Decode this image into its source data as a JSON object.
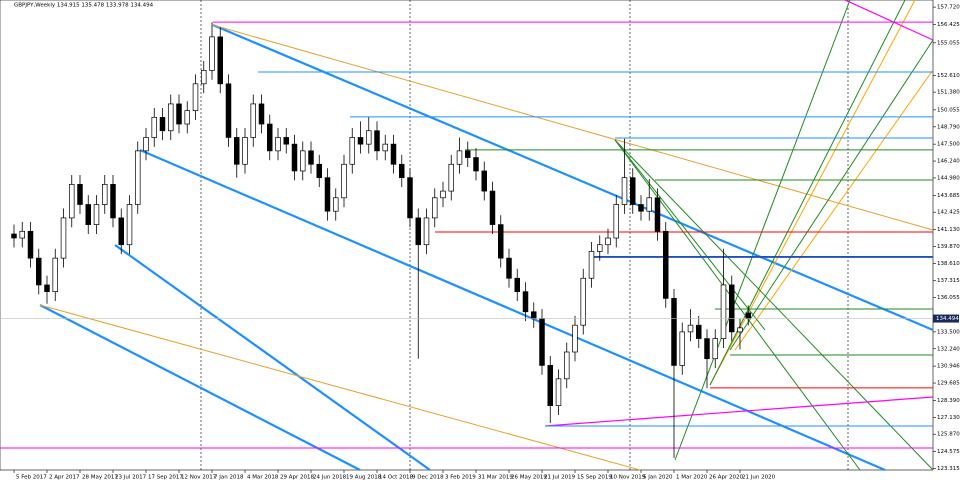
{
  "chart_data": {
    "type": "candlestick",
    "title": "GBPJPY,Weekly  134.915 135.478 133.978 134.494",
    "categories": [
      "5 Feb 2017",
      null,
      null,
      null,
      "2 Apr 2017",
      null,
      null,
      null,
      "28 May 2017",
      null,
      null,
      null,
      "23 Jul 2017",
      null,
      null,
      null,
      "17 Sep 2017",
      null,
      null,
      null,
      "12 Nov 2017",
      null,
      null,
      null,
      "7 Jan 2018",
      null,
      null,
      null,
      "4 Mar 2018",
      null,
      null,
      null,
      "29 Apr 2018",
      null,
      null,
      null,
      "24 Jun 2018",
      null,
      null,
      null,
      "19 Aug 2018",
      null,
      null,
      null,
      "14 Oct 2018",
      null,
      null,
      null,
      "9 Dec 2018",
      null,
      null,
      null,
      "3 Feb 2019",
      null,
      null,
      null,
      "31 Mar 2019",
      null,
      null,
      null,
      "26 May 2019",
      null,
      null,
      null,
      "21 Jul 2019",
      null,
      null,
      null,
      "15 Sep 2019",
      null,
      null,
      null,
      "10 Nov 2019",
      null,
      null,
      null,
      "5 Jan 2020",
      null,
      null,
      null,
      "1 Mar 2020",
      null,
      null,
      null,
      "26 Apr 2020",
      null,
      null,
      null,
      "21 Jun 2020",
      null
    ],
    "ohlc": [
      [
        140.8,
        141.5,
        139.8,
        140.5
      ],
      [
        140.5,
        141.7,
        139.8,
        141
      ],
      [
        141,
        141.7,
        138.3,
        139
      ],
      [
        139,
        139.7,
        136.3,
        137
      ],
      [
        137,
        137.7,
        135.6,
        136.5
      ],
      [
        136.5,
        139.7,
        135.8,
        139
      ],
      [
        139,
        142.7,
        138.3,
        142
      ],
      [
        142,
        145.2,
        141.3,
        144.5
      ],
      [
        144.5,
        145.2,
        142.3,
        143
      ],
      [
        143,
        143.7,
        140.8,
        141.5
      ],
      [
        141.5,
        143.7,
        140.8,
        143
      ],
      [
        143,
        145.2,
        142.3,
        144.5
      ],
      [
        144.5,
        145.2,
        141.3,
        142
      ],
      [
        142,
        142.7,
        139.3,
        140
      ],
      [
        140,
        143.7,
        139.3,
        143
      ],
      [
        143,
        147.7,
        142.3,
        147
      ],
      [
        147,
        148.7,
        146.3,
        148
      ],
      [
        148,
        150.2,
        147.3,
        149.5
      ],
      [
        149.5,
        150.2,
        147.8,
        148.5
      ],
      [
        148.5,
        151.2,
        147.8,
        150.5
      ],
      [
        150.5,
        151.2,
        148.3,
        149
      ],
      [
        149,
        150.7,
        148.3,
        150
      ],
      [
        150,
        152.7,
        149.3,
        152
      ],
      [
        152,
        153.7,
        151.3,
        153
      ],
      [
        153,
        156.6,
        152.3,
        155.5
      ],
      [
        155.5,
        156.2,
        151.3,
        152
      ],
      [
        152,
        152.7,
        147.3,
        148
      ],
      [
        148,
        148.7,
        145,
        146
      ],
      [
        146,
        148.7,
        145.3,
        148
      ],
      [
        148,
        151.2,
        147.3,
        150.5
      ],
      [
        150.5,
        151.2,
        148.3,
        149
      ],
      [
        149,
        149.7,
        146.3,
        147
      ],
      [
        147,
        148.7,
        146.3,
        148
      ],
      [
        148,
        148.7,
        146.8,
        147.5
      ],
      [
        147.5,
        148.2,
        144.8,
        145.5
      ],
      [
        145.5,
        147.7,
        144.8,
        147
      ],
      [
        147,
        147.7,
        145.3,
        146
      ],
      [
        146,
        146.7,
        144.3,
        145
      ],
      [
        145,
        145.7,
        141.8,
        142.5
      ],
      [
        142.5,
        144.2,
        141.8,
        143.5
      ],
      [
        143.5,
        146.7,
        142.8,
        146
      ],
      [
        146,
        148.7,
        145.3,
        148
      ],
      [
        148,
        149.2,
        146.8,
        147.5
      ],
      [
        147.5,
        149.5,
        146.8,
        148.5
      ],
      [
        148.5,
        149.2,
        146.3,
        147
      ],
      [
        147,
        148.2,
        146.3,
        147.5
      ],
      [
        147.5,
        148.2,
        145.3,
        146
      ],
      [
        146,
        146.7,
        144.3,
        145
      ],
      [
        145,
        145.7,
        141.3,
        142
      ],
      [
        142,
        142.7,
        131.5,
        140
      ],
      [
        140,
        142.7,
        139.3,
        142
      ],
      [
        142,
        144.2,
        141.3,
        143.5
      ],
      [
        143.5,
        144.7,
        142.8,
        144
      ],
      [
        144,
        146.7,
        143.3,
        146
      ],
      [
        146,
        148,
        145.3,
        147
      ],
      [
        147,
        147.7,
        145.8,
        146.5
      ],
      [
        146.5,
        147.2,
        144.8,
        145.5
      ],
      [
        145.5,
        146.2,
        143.3,
        144
      ],
      [
        144,
        144.7,
        140.8,
        141.5
      ],
      [
        141.5,
        142.2,
        138.3,
        139
      ],
      [
        139,
        139.7,
        136.8,
        137.5
      ],
      [
        137.5,
        138.2,
        135.8,
        136.5
      ],
      [
        136.5,
        137.2,
        134.3,
        135
      ],
      [
        135,
        135.7,
        133.8,
        134.5
      ],
      [
        134.5,
        135.2,
        130.3,
        131
      ],
      [
        131,
        131.7,
        126.7,
        128
      ],
      [
        128,
        130.7,
        127.3,
        130
      ],
      [
        130,
        132.7,
        129.3,
        132
      ],
      [
        132,
        134.7,
        131.3,
        134
      ],
      [
        134,
        138.2,
        133.3,
        137.5
      ],
      [
        137.5,
        140.2,
        136.8,
        139.5
      ],
      [
        139.5,
        140.7,
        138.8,
        140
      ],
      [
        140,
        141.2,
        139.3,
        140.5
      ],
      [
        140.5,
        143.7,
        139.8,
        143
      ],
      [
        143,
        147.9,
        142.3,
        145
      ],
      [
        145,
        145.7,
        142.3,
        143
      ],
      [
        143,
        143.7,
        141.8,
        142.5
      ],
      [
        142.5,
        144.9,
        141.8,
        143.5
      ],
      [
        143.5,
        144.2,
        140.3,
        141
      ],
      [
        141,
        141.7,
        135.3,
        136
      ],
      [
        136,
        136.7,
        124.1,
        131
      ],
      [
        131,
        134.2,
        130.3,
        133.5
      ],
      [
        133.5,
        135.2,
        132.8,
        134
      ],
      [
        134,
        134.7,
        132.3,
        133
      ],
      [
        133,
        133.7,
        129.3,
        131.5
      ],
      [
        131.5,
        133.7,
        130.8,
        133
      ],
      [
        133,
        139.7,
        132.3,
        137
      ],
      [
        137,
        137.7,
        132.8,
        133.5
      ],
      [
        133.5,
        134.5,
        132.2,
        133.8
      ],
      [
        134.915,
        135.478,
        133.978,
        134.494
      ]
    ],
    "up_color": "#ffffff",
    "down_color": "#000000",
    "levels": [
      {
        "value": 156.6,
        "color": "#ff00ff"
      },
      {
        "value": 152.88,
        "color": "#1e90ff"
      },
      {
        "value": 149.53,
        "color": "#1e90ff"
      },
      {
        "value": 147.96,
        "color": "#1e90ff"
      },
      {
        "value": 147.07,
        "color": "#228b22"
      },
      {
        "value": 144.83,
        "color": "#228b22"
      },
      {
        "value": 140.95,
        "color": "#ff0000"
      },
      {
        "value": 139.09,
        "color": "#2050c0"
      },
      {
        "value": 135.21,
        "color": "#228b22"
      },
      {
        "value": 131.78,
        "color": "#228b22"
      },
      {
        "value": 129.32,
        "color": "#ff0000"
      },
      {
        "value": 126.48,
        "color": "#1e90ff"
      },
      {
        "value": 124.84,
        "color": "#ff00ff"
      }
    ],
    "ylim": [
      123.2,
      158.25
    ],
    "yticks": [
      {
        "value": 157.72,
        "label": "157.720"
      },
      156.425,
      155.055,
      {
        "value": 152.61,
        "label": "152.610"
      },
      {
        "value": 151.38,
        "label": "151.380"
      },
      150.055,
      {
        "value": 148.79,
        "label": "148.790"
      },
      {
        "value": 147.5,
        "label": "147.500"
      },
      {
        "value": 146.24,
        "label": "146.240"
      },
      {
        "value": 144.98,
        "label": "144.980"
      },
      143.685,
      142.425,
      {
        "value": 141.13,
        "label": "141.130"
      },
      {
        "value": 139.87,
        "label": "139.870"
      },
      {
        "value": 138.61,
        "label": "138.610"
      },
      137.315,
      136.055,
      {
        "value": 133.5,
        "label": "133.500"
      },
      {
        "value": 132.24,
        "label": "132.240"
      },
      130.946,
      129.685,
      {
        "value": 128.39,
        "label": "128.390"
      },
      {
        "value": 127.13,
        "label": "127.130"
      },
      {
        "value": 125.87,
        "label": "125.870"
      },
      124.575,
      123.315
    ]
  }
}
